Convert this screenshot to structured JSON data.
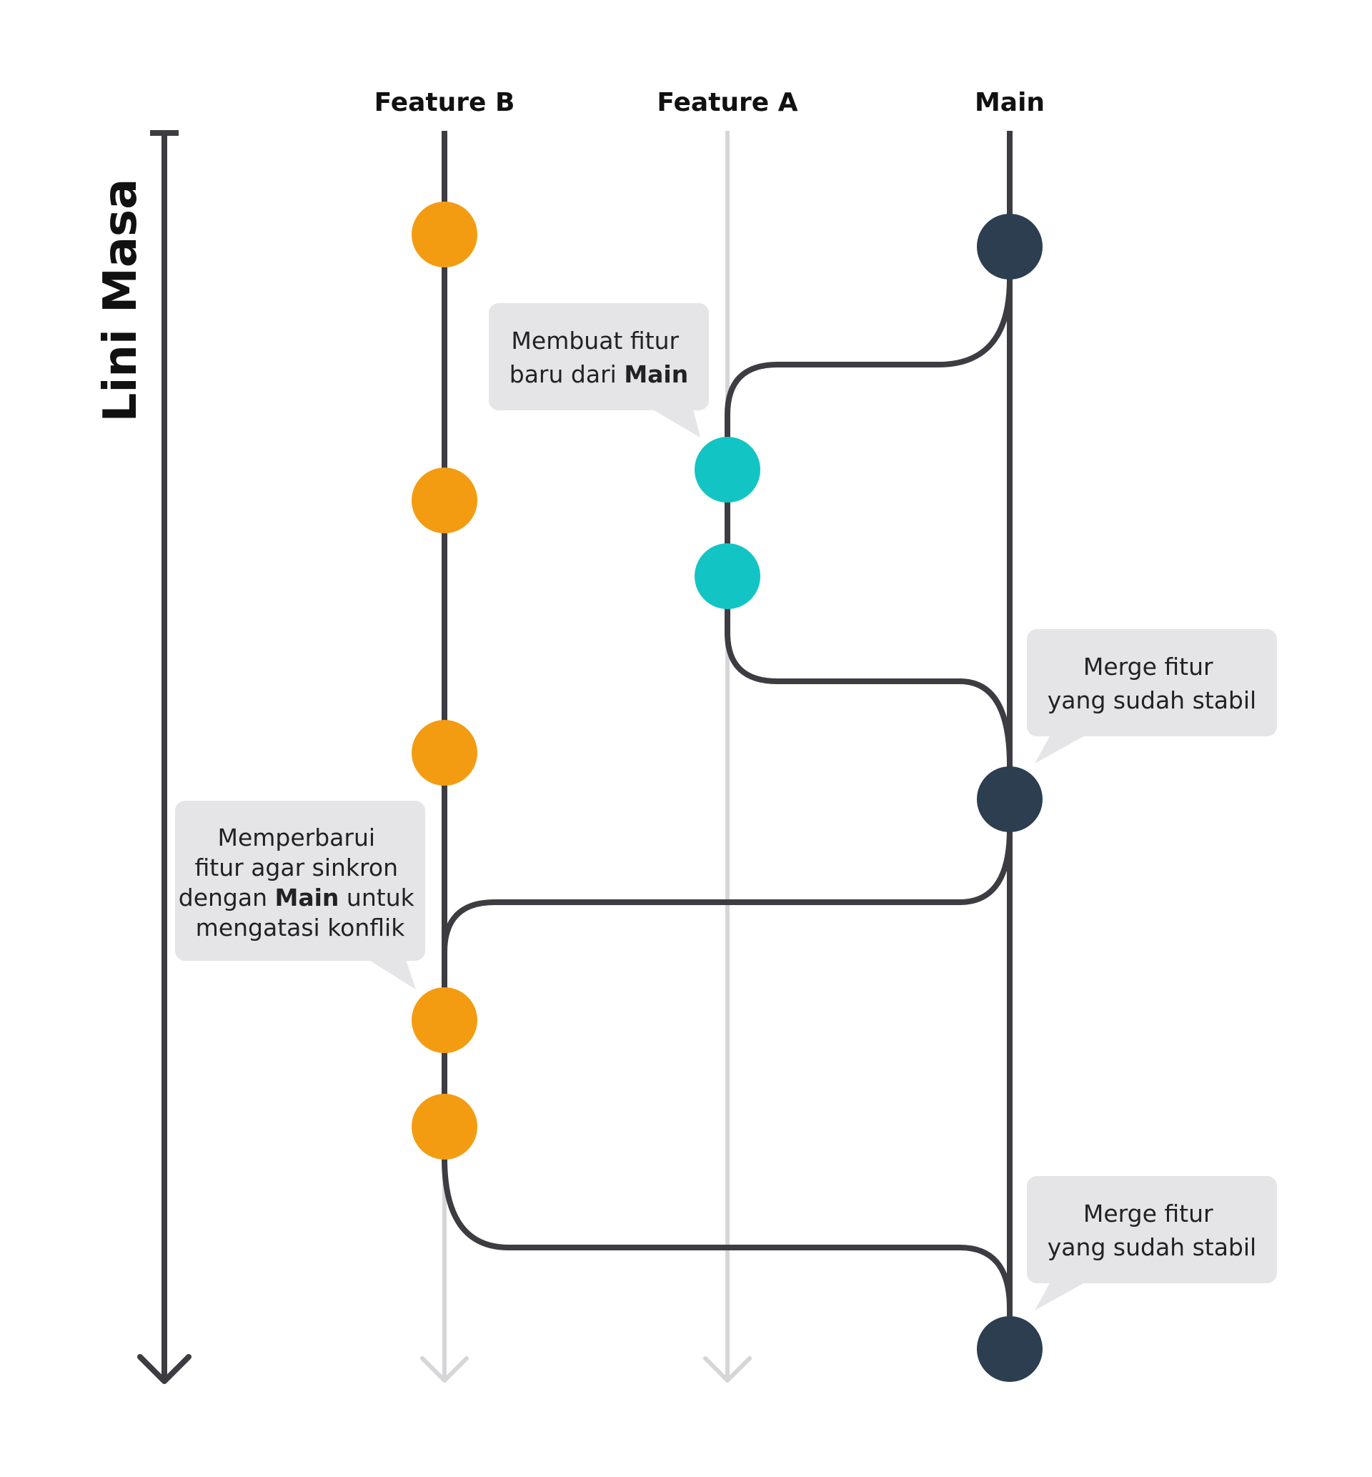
{
  "timeline": {
    "label": "Lini Masa"
  },
  "branches": [
    {
      "id": "feature-b",
      "title": "Feature B"
    },
    {
      "id": "feature-a",
      "title": "Feature A"
    },
    {
      "id": "main",
      "title": "Main"
    }
  ],
  "colors": {
    "line_dark": "#3c3c42",
    "line_light": "#d6d6d8",
    "main_commit": "#2c3e50",
    "feature_a_commit": "#13c4c4",
    "feature_b_commit": "#f39c12",
    "callout_bg": "#e5e5e7"
  },
  "commits": [
    {
      "branch": "feature-b",
      "order": 1
    },
    {
      "branch": "main",
      "order": 2
    },
    {
      "branch": "feature-a",
      "order": 3
    },
    {
      "branch": "feature-b",
      "order": 4
    },
    {
      "branch": "feature-a",
      "order": 5
    },
    {
      "branch": "feature-b",
      "order": 6
    },
    {
      "branch": "main",
      "order": 7
    },
    {
      "branch": "feature-b",
      "order": 8
    },
    {
      "branch": "feature-b",
      "order": 9
    },
    {
      "branch": "main",
      "order": 10
    }
  ],
  "callouts": [
    {
      "id": "create-feature",
      "lines": [
        [
          {
            "t": "Membuat fitur"
          }
        ],
        [
          {
            "t": "baru dari "
          },
          {
            "t": "Main",
            "b": true
          }
        ]
      ]
    },
    {
      "id": "merge-1",
      "lines": [
        [
          {
            "t": "Merge fitur"
          }
        ],
        [
          {
            "t": "yang sudah stabil"
          }
        ]
      ]
    },
    {
      "id": "update-feature",
      "lines": [
        [
          {
            "t": "Memperbarui"
          }
        ],
        [
          {
            "t": "fitur agar sinkron"
          }
        ],
        [
          {
            "t": "dengan "
          },
          {
            "t": "Main",
            "b": true
          },
          {
            "t": " untuk"
          }
        ],
        [
          {
            "t": "mengatasi konflik"
          }
        ]
      ]
    },
    {
      "id": "merge-2",
      "lines": [
        [
          {
            "t": "Merge fitur"
          }
        ],
        [
          {
            "t": "yang sudah stabil"
          }
        ]
      ]
    }
  ]
}
